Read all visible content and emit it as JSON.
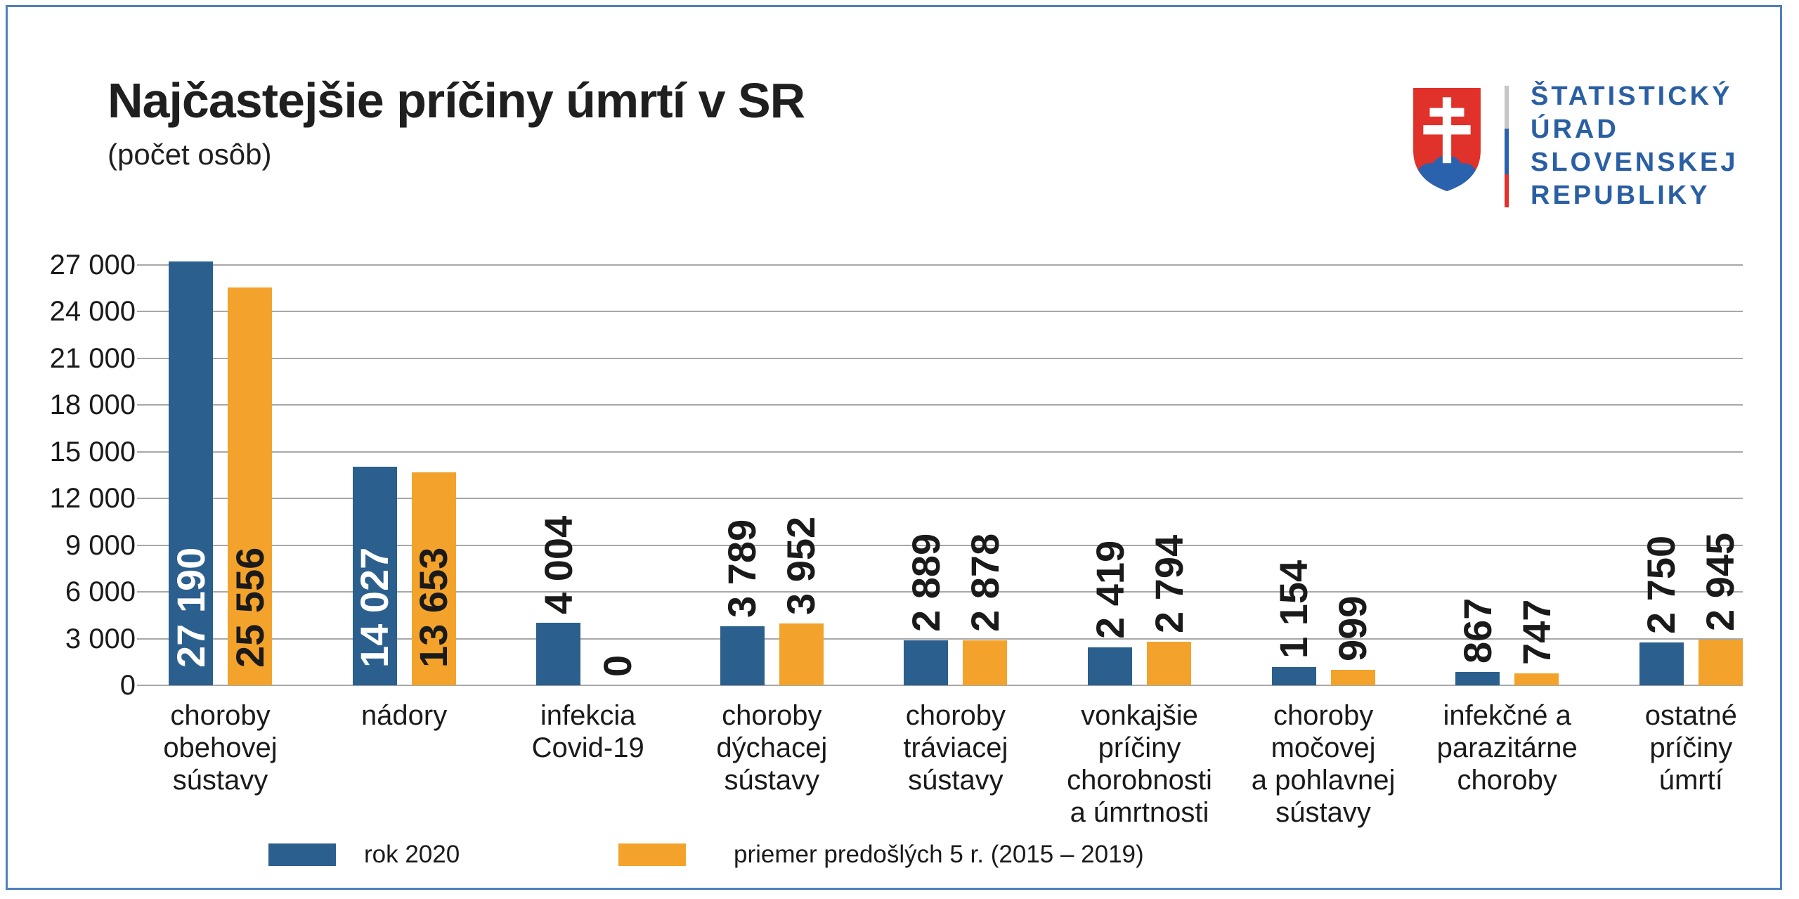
{
  "header": {
    "title": "Najčastejšie príčiny úmrtí v SR",
    "subtitle": "(počet osôb)"
  },
  "logo": {
    "org_lines": [
      "ŠTATISTICKÝ",
      "ÚRAD",
      "SLOVENSKEJ",
      "REPUBLIKY"
    ],
    "text_color": "#2a5fa3",
    "emblem_red": "#e0312a",
    "emblem_blue": "#2a62ad",
    "separator_colors": [
      "#c6c6c6",
      "#2a62ad",
      "#e0312a"
    ]
  },
  "frame_color": "#4f81bd",
  "chart_data": {
    "type": "bar",
    "title": "Najčastejšie príčiny úmrtí v SR",
    "unit_label": "(počet osôb)",
    "categories": [
      "choroby obehovej sústavy",
      "nádory",
      "infekcia Covid-19",
      "choroby dýchacej sústavy",
      "choroby tráviacej sústavy",
      "vonkajšie príčiny chorobnosti a úmrtnosti",
      "choroby močovej a pohlavnej sústavy",
      "infekčné a parazitárne choroby",
      "ostatné príčiny úmrtí"
    ],
    "category_lines": [
      [
        "choroby",
        "obehovej",
        "sústavy"
      ],
      [
        "nádory"
      ],
      [
        "infekcia",
        "Covid-19"
      ],
      [
        "choroby",
        "dýchacej",
        "sústavy"
      ],
      [
        "choroby",
        "tráviacej",
        "sústavy"
      ],
      [
        "vonkajšie",
        "príčiny",
        "chorobnosti",
        "a úmrtnosti"
      ],
      [
        "choroby",
        "močovej",
        "a pohlavnej",
        "sústavy"
      ],
      [
        "infekčné a",
        "parazitárne",
        "choroby"
      ],
      [
        "ostatné",
        "príčiny",
        "úmrtí"
      ]
    ],
    "series": [
      {
        "name": "rok 2020",
        "color": "#2b5f8e",
        "values": [
          27190,
          14027,
          4004,
          3789,
          2889,
          2419,
          1154,
          867,
          2750
        ]
      },
      {
        "name": "priemer predošlých 5 r. (2015 – 2019)",
        "color": "#f3a32b",
        "values": [
          25556,
          13653,
          0,
          3952,
          2878,
          2794,
          999,
          747,
          2945
        ]
      }
    ],
    "y_ticks": [
      "0",
      "3 000",
      "6 000",
      "9 000",
      "12 000",
      "15 000",
      "18 000",
      "21 000",
      "24 000",
      "27 000"
    ],
    "ylim": [
      0,
      27000
    ],
    "y_step": 3000,
    "grid": true,
    "gridline_color": "#a8a8a8",
    "legend_position": "bottom",
    "value_labels_rotated": true
  }
}
